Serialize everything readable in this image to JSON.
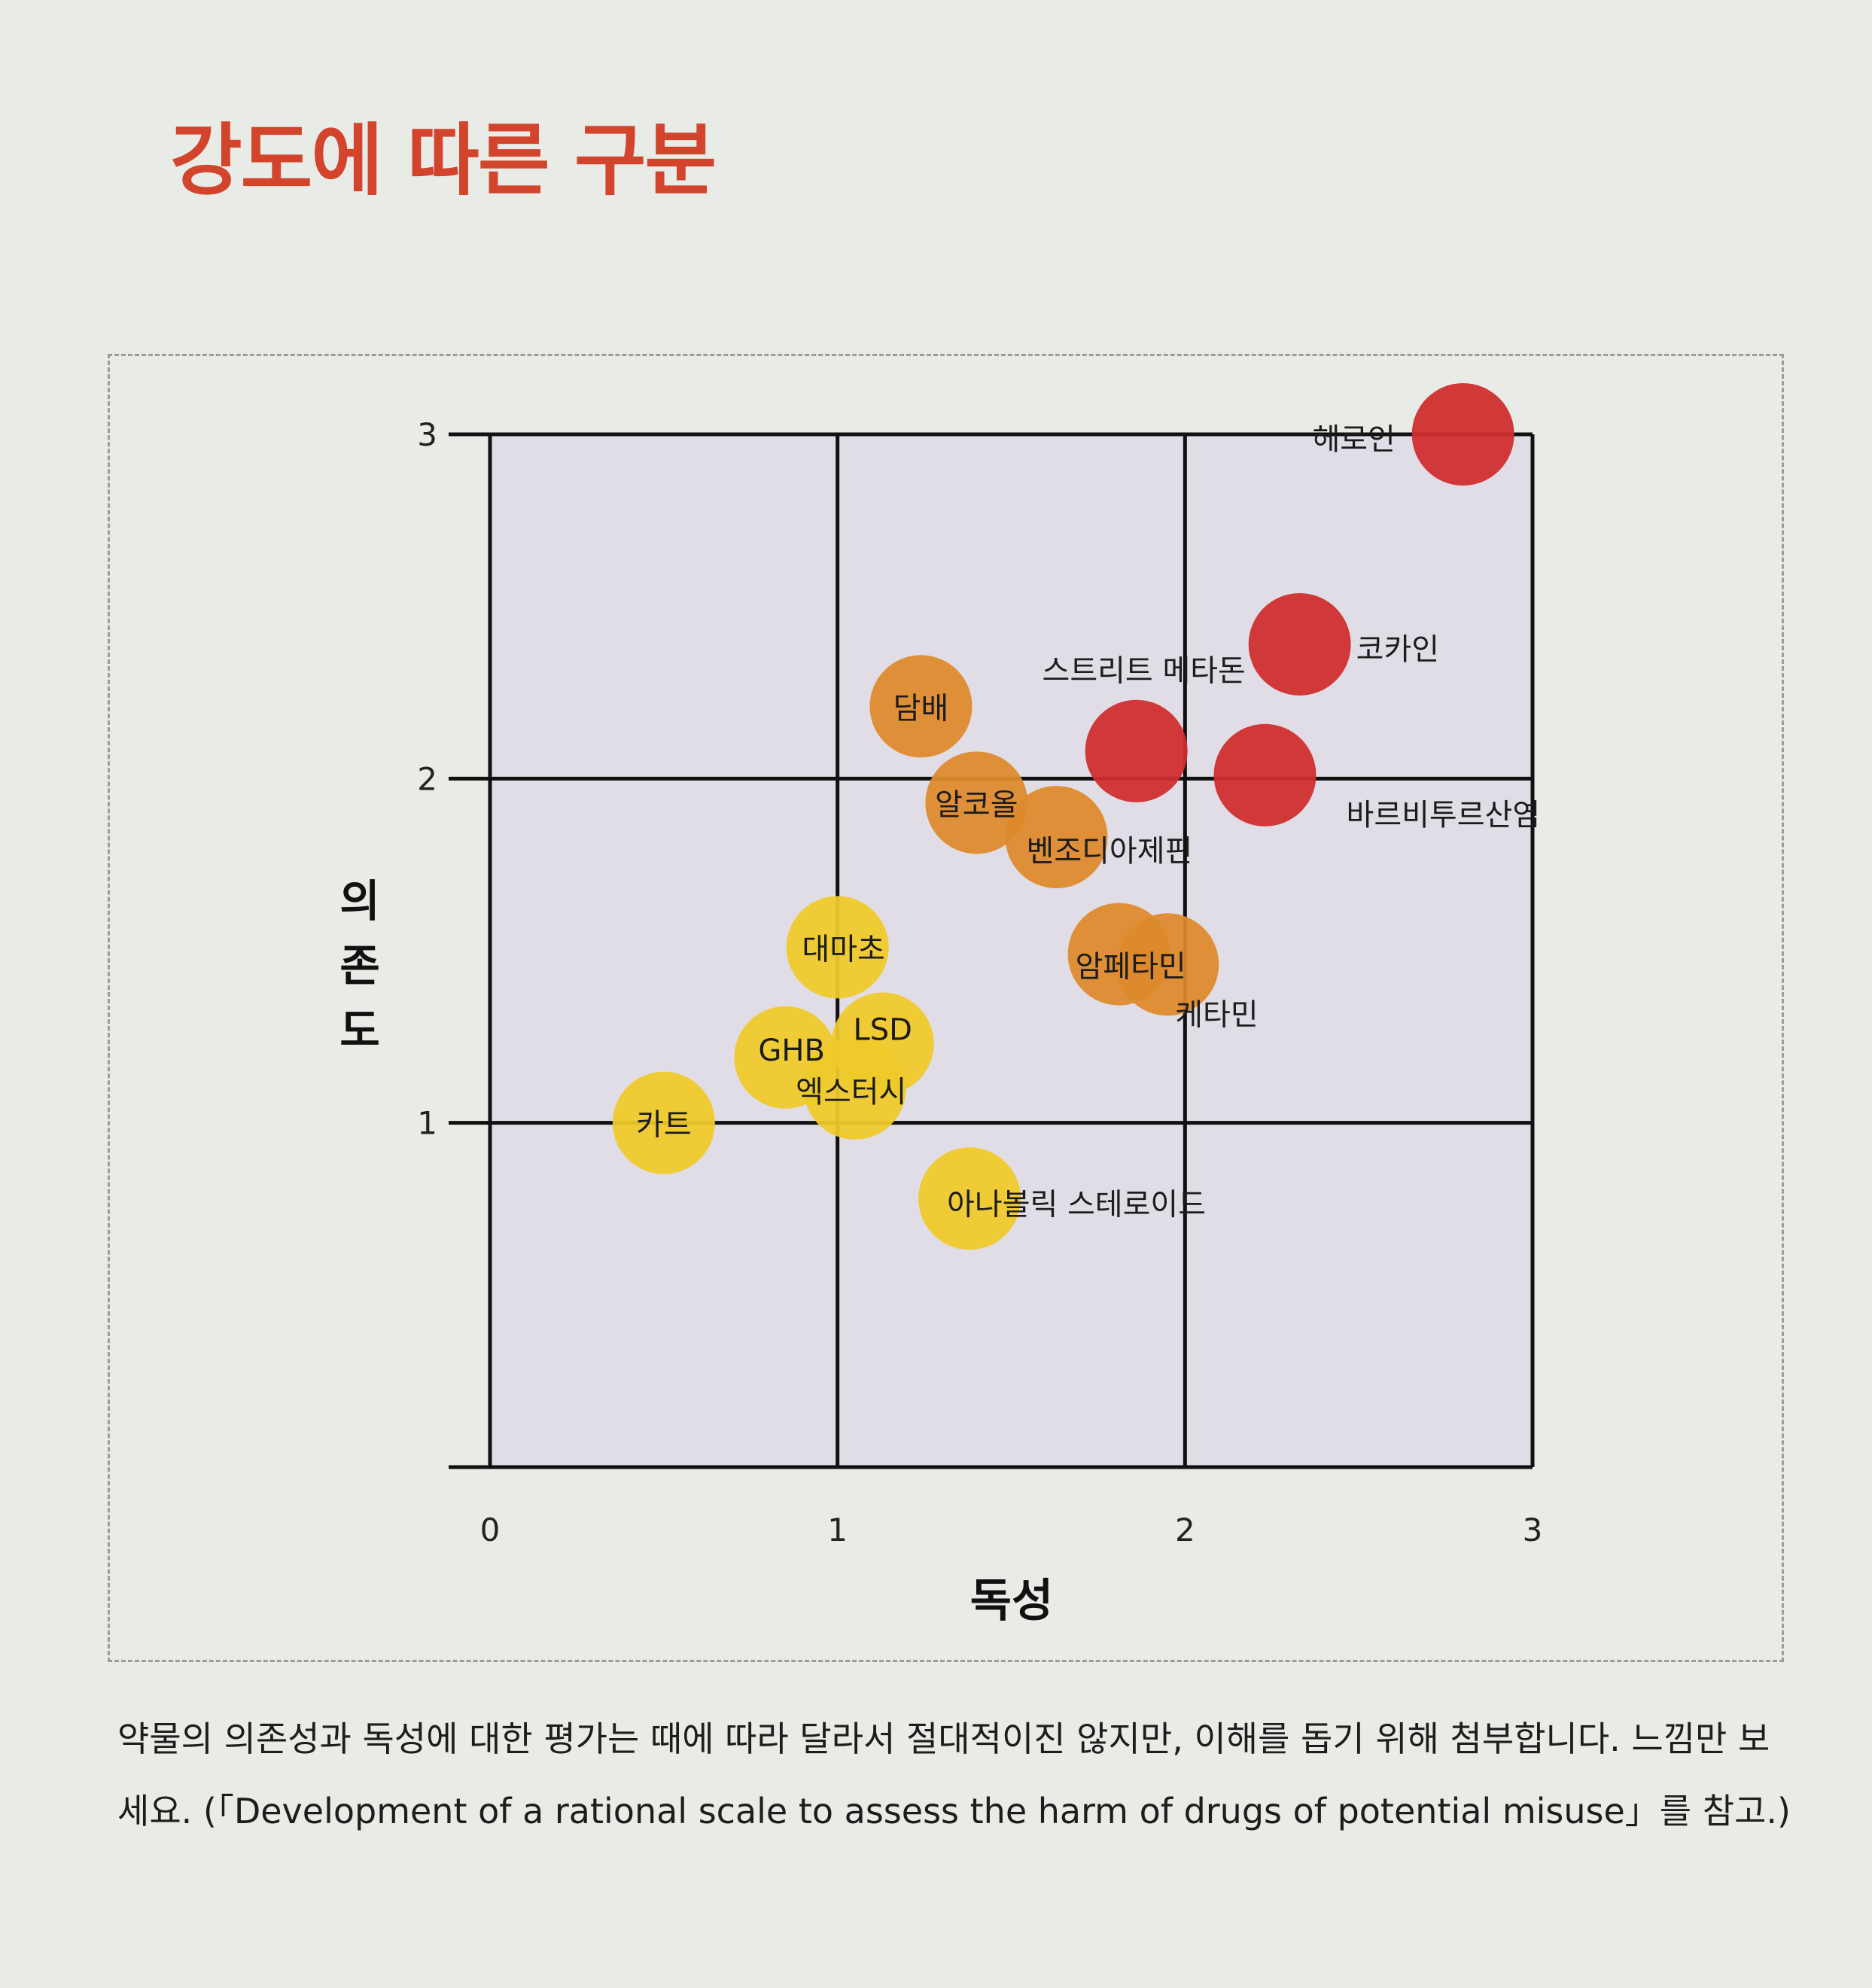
{
  "page": {
    "title": "강도에 따른 구분",
    "caption": "약물의 의존성과 독성에 대한 평가는 때에 따라 달라서 절대적이진 않지만, 이해를 돕기 위해 첨부합니다. 느낌만 보세요. (「Development of a rational scale to assess the harm of drugs of potential misuse」를 참고.)"
  },
  "colors": {
    "red": "#cf2e2e",
    "orange": "#dd8a2c",
    "yellow": "#efca2a",
    "plot_bg": "#e1dde6",
    "title": "#d2452c"
  },
  "chart_data": {
    "type": "scatter",
    "xlabel": "독성",
    "ylabel": "의존도",
    "xlim": [
      0,
      3
    ],
    "ylim": [
      0,
      3
    ],
    "xticks": [
      "0",
      "1",
      "2",
      "3"
    ],
    "yticks": [
      "1",
      "2",
      "3"
    ],
    "grid": true,
    "points": [
      {
        "label": "헤로인",
        "x": 2.8,
        "y": 3.0,
        "color": "red"
      },
      {
        "label": "코카인",
        "x": 2.33,
        "y": 2.39,
        "color": "red"
      },
      {
        "label": "스트리트 메타돈",
        "x": 1.86,
        "y": 2.08,
        "color": "red"
      },
      {
        "label": "바르비투르산염",
        "x": 2.23,
        "y": 2.01,
        "color": "red"
      },
      {
        "label": "담배",
        "x": 1.24,
        "y": 2.21,
        "color": "orange"
      },
      {
        "label": "알코올",
        "x": 1.4,
        "y": 1.93,
        "color": "orange"
      },
      {
        "label": "벤조디아제핀",
        "x": 1.63,
        "y": 1.83,
        "color": "orange"
      },
      {
        "label": "암페타민",
        "x": 1.81,
        "y": 1.49,
        "color": "orange"
      },
      {
        "label": "케타민",
        "x": 1.95,
        "y": 1.46,
        "color": "orange"
      },
      {
        "label": "대마초",
        "x": 1.0,
        "y": 1.51,
        "color": "yellow"
      },
      {
        "label": "LSD",
        "x": 1.13,
        "y": 1.23,
        "color": "yellow"
      },
      {
        "label": "GHB",
        "x": 0.85,
        "y": 1.19,
        "color": "yellow"
      },
      {
        "label": "엑스터시",
        "x": 1.05,
        "y": 1.1,
        "color": "yellow"
      },
      {
        "label": "카트",
        "x": 0.5,
        "y": 1.0,
        "color": "yellow"
      },
      {
        "label": "아나볼릭 스테로이드",
        "x": 1.38,
        "y": 0.78,
        "color": "yellow"
      }
    ]
  }
}
